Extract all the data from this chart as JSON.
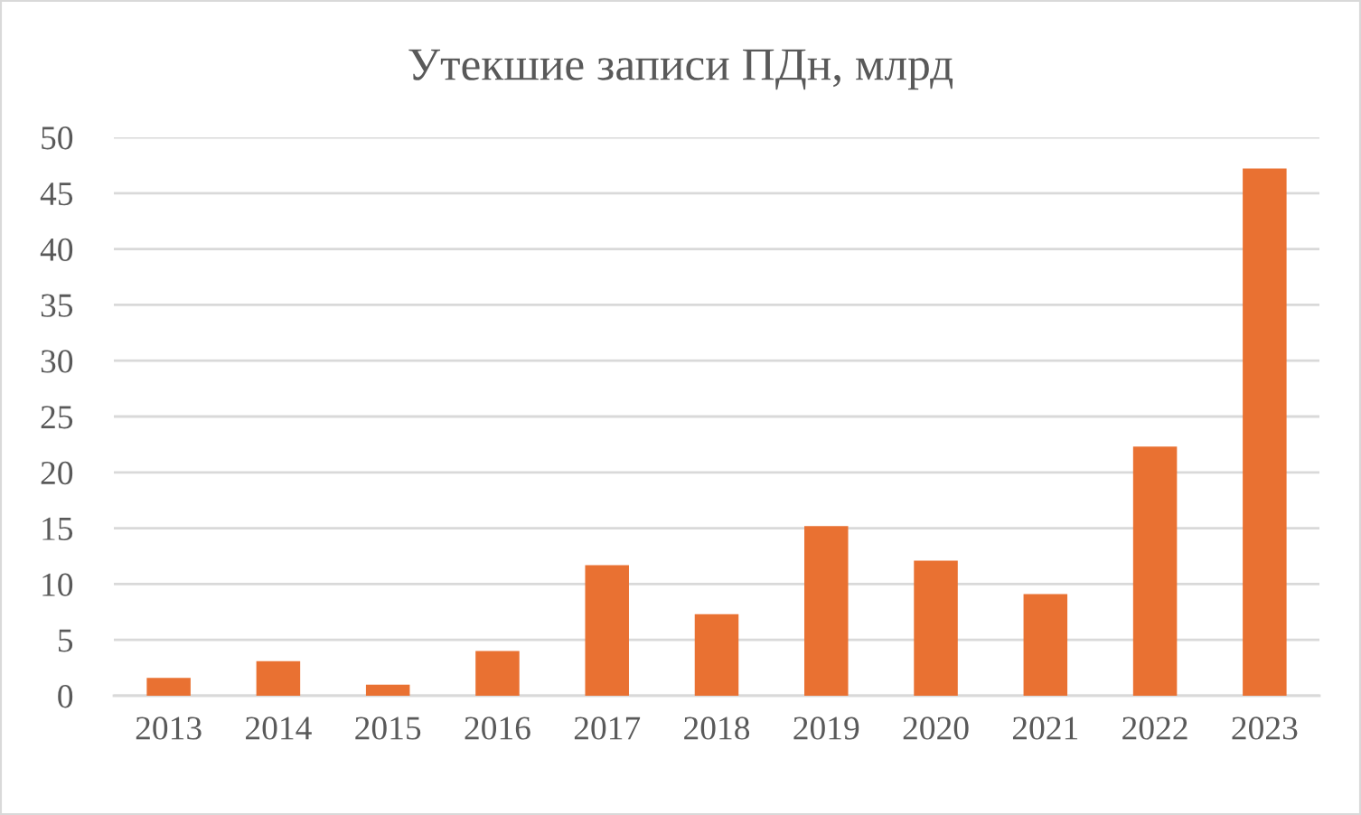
{
  "chart_data": {
    "type": "bar",
    "title": "Утекшие записи ПДн, млрд",
    "categories": [
      "2013",
      "2014",
      "2015",
      "2016",
      "2017",
      "2018",
      "2019",
      "2020",
      "2021",
      "2022",
      "2023"
    ],
    "values": [
      1.6,
      3.1,
      1.0,
      4.0,
      11.7,
      7.3,
      15.2,
      12.1,
      9.1,
      22.3,
      47.2
    ],
    "color": "#e97132",
    "ylim": [
      0,
      50
    ],
    "yticks": [
      0,
      5,
      10,
      15,
      20,
      25,
      30,
      35,
      40,
      45,
      50
    ],
    "grid": "y",
    "legend": false
  }
}
